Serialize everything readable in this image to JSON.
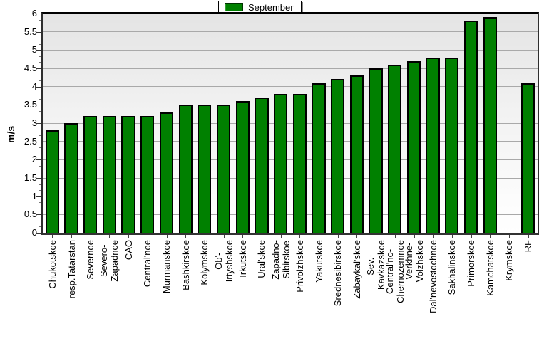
{
  "legend": {
    "label": "September",
    "swatch_color": "#008000"
  },
  "y_axis": {
    "label": "m/s",
    "ticks": [
      "6",
      "5.5",
      "5",
      "4.5",
      "4",
      "3.5",
      "3",
      "2.5",
      "2",
      "1.5",
      "1",
      "0.5",
      "0"
    ]
  },
  "chart_data": {
    "type": "bar",
    "title": "",
    "legend_entries": [
      "September"
    ],
    "legend_position": "top-center",
    "xlabel": "",
    "ylabel": "m/s",
    "ylim": [
      0,
      6
    ],
    "ytick_step": 0.5,
    "grid": true,
    "bar_color": "#008000",
    "bar_border_color": "#000000",
    "categories": [
      "Chukotskoe",
      "resp.Tatarstan",
      "Severnoe",
      "Severo-\nZapadnoe",
      "CAO",
      "Central'noe",
      "Murmanskoe",
      "Bashkirskoe",
      "Kolymskoe",
      "Ob'-\nIrtyshskoe",
      "Irkutskoe",
      "Ural'skoe",
      "Zapadno-\nSibirskoe",
      "Privolzhskoe",
      "Yakutskoe",
      "Srednesibirskoe",
      "Zabaykal'skoe",
      "Sev.-\nKavkazskoe",
      "Central'no-\nChernozemnoe",
      "Verkhne-\nVolzhskoe",
      "Dal'nevostochnoe",
      "Sakhalinskoe",
      "Primorskoe",
      "Kamchatskoe",
      "Krymskoe",
      "RF"
    ],
    "values": [
      2.8,
      3.0,
      3.2,
      3.2,
      3.2,
      3.2,
      3.3,
      3.5,
      3.5,
      3.5,
      3.6,
      3.7,
      3.8,
      3.8,
      4.1,
      4.2,
      4.3,
      4.5,
      4.6,
      4.7,
      4.8,
      4.8,
      5.8,
      5.9,
      null,
      4.1
    ]
  },
  "colors": {
    "plot_bg_top": "#e4e4e4",
    "plot_bg_bottom": "#ffffff",
    "gridline": "#a9a9a9",
    "axis": "#333333"
  }
}
